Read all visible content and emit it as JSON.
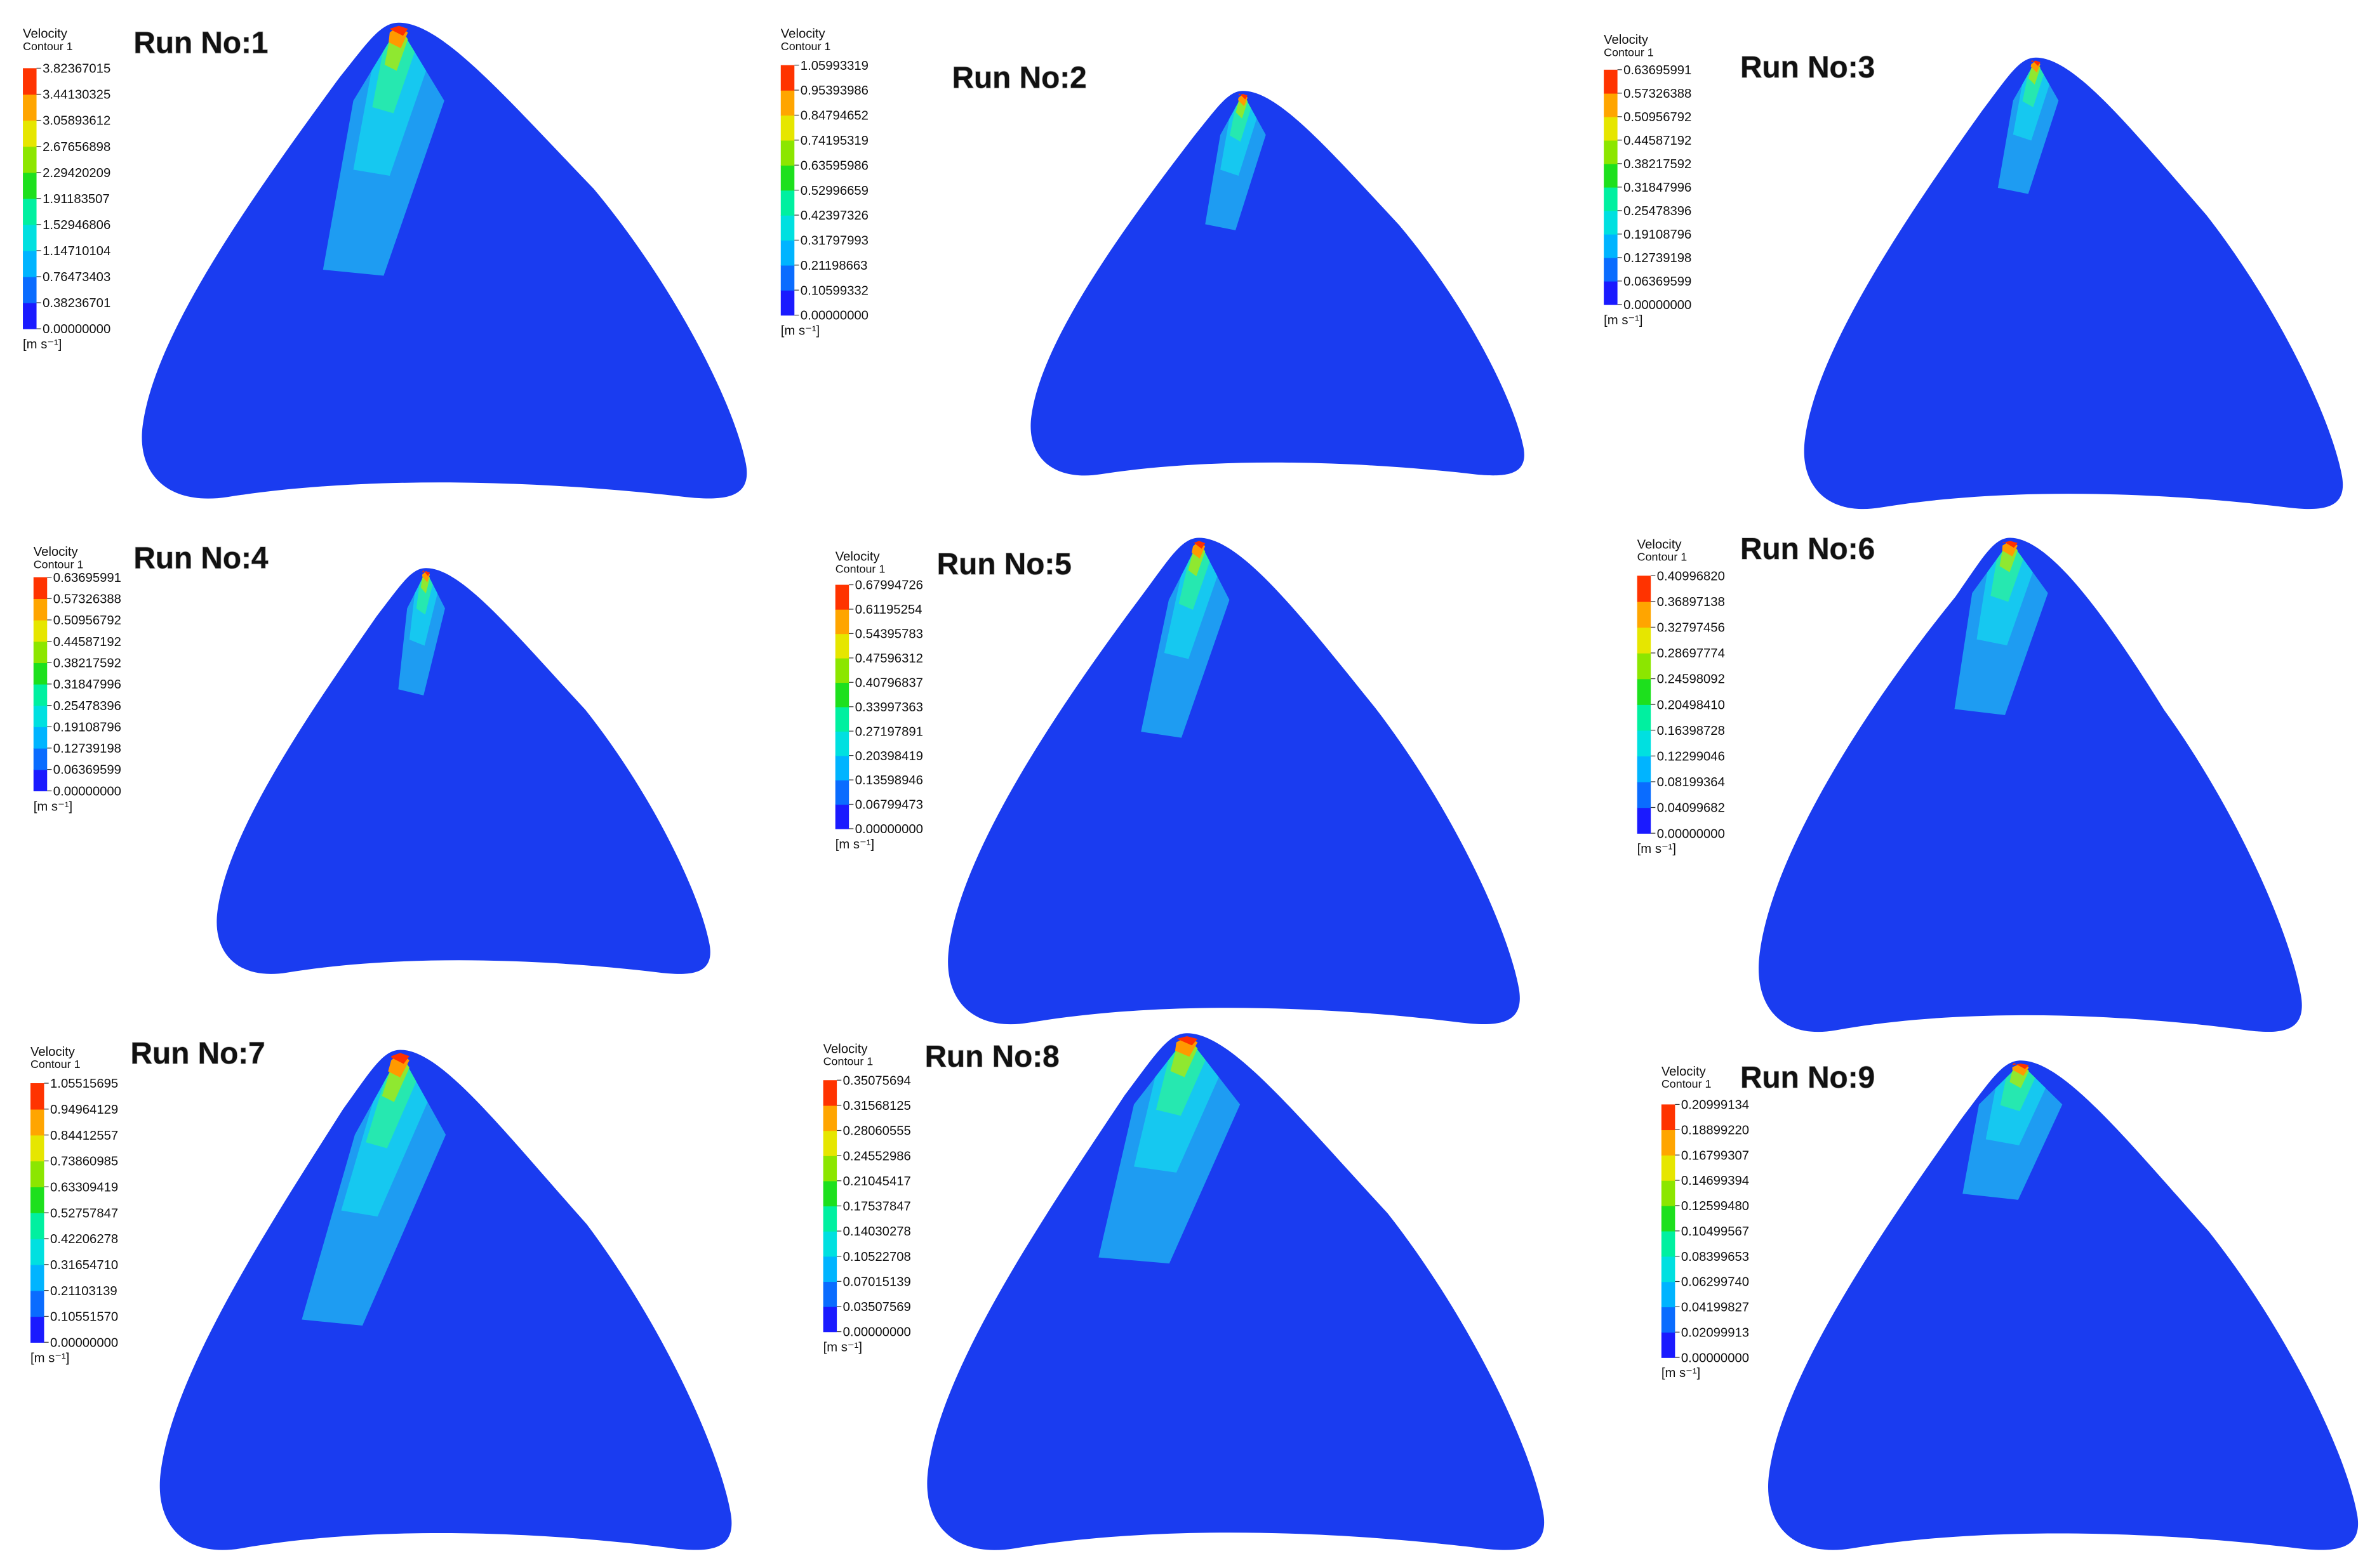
{
  "panels": [
    {
      "title": "Run No:1",
      "legend": {
        "title": "Velocity",
        "subtitle": "Contour 1",
        "labels": [
          "3.82367015",
          "3.44130325",
          "3.05893612",
          "2.67656898",
          "2.29420209",
          "1.91183507",
          "1.52946806",
          "1.14710104",
          "0.76473403",
          "0.38236701",
          "0.00000000"
        ],
        "unit": "[m s⁻¹]"
      }
    },
    {
      "title": "Run No:2",
      "legend": {
        "title": "Velocity",
        "subtitle": "Contour 1",
        "labels": [
          "1.05993319",
          "0.95393986",
          "0.84794652",
          "0.74195319",
          "0.63595986",
          "0.52996659",
          "0.42397326",
          "0.31797993",
          "0.21198663",
          "0.10599332",
          "0.00000000"
        ],
        "unit": "[m s⁻¹]"
      }
    },
    {
      "title": "Run No:3",
      "legend": {
        "title": "Velocity",
        "subtitle": "Contour 1",
        "labels": [
          "0.63695991",
          "0.57326388",
          "0.50956792",
          "0.44587192",
          "0.38217592",
          "0.31847996",
          "0.25478396",
          "0.19108796",
          "0.12739198",
          "0.06369599",
          "0.00000000"
        ],
        "unit": "[m s⁻¹]"
      }
    },
    {
      "title": "Run No:4",
      "legend": {
        "title": "Velocity",
        "subtitle": "Contour 1",
        "labels": [
          "0.63695991",
          "0.57326388",
          "0.50956792",
          "0.44587192",
          "0.38217592",
          "0.31847996",
          "0.25478396",
          "0.19108796",
          "0.12739198",
          "0.06369599",
          "0.00000000"
        ],
        "unit": "[m s⁻¹]"
      }
    },
    {
      "title": "Run No:5",
      "legend": {
        "title": "Velocity",
        "subtitle": "Contour 1",
        "labels": [
          "0.67994726",
          "0.61195254",
          "0.54395783",
          "0.47596312",
          "0.40796837",
          "0.33997363",
          "0.27197891",
          "0.20398419",
          "0.13598946",
          "0.06799473",
          "0.00000000"
        ],
        "unit": "[m s⁻¹]"
      }
    },
    {
      "title": "Run No:6",
      "legend": {
        "title": "Velocity",
        "subtitle": "Contour 1",
        "labels": [
          "0.40996820",
          "0.36897138",
          "0.32797456",
          "0.28697774",
          "0.24598092",
          "0.20498410",
          "0.16398728",
          "0.12299046",
          "0.08199364",
          "0.04099682",
          "0.00000000"
        ],
        "unit": "[m s⁻¹]"
      }
    },
    {
      "title": "Run No:7",
      "legend": {
        "title": "Velocity",
        "subtitle": "Contour 1",
        "labels": [
          "1.05515695",
          "0.94964129",
          "0.84412557",
          "0.73860985",
          "0.63309419",
          "0.52757847",
          "0.42206278",
          "0.31654710",
          "0.21103139",
          "0.10551570",
          "0.00000000"
        ],
        "unit": "[m s⁻¹]"
      }
    },
    {
      "title": "Run No:8",
      "legend": {
        "title": "Velocity",
        "subtitle": "Contour 1",
        "labels": [
          "0.35075694",
          "0.31568125",
          "0.28060555",
          "0.24552986",
          "0.21045417",
          "0.17537847",
          "0.14030278",
          "0.10522708",
          "0.07015139",
          "0.03507569",
          "0.00000000"
        ],
        "unit": "[m s⁻¹]"
      }
    },
    {
      "title": "Run No:9",
      "legend": {
        "title": "Velocity",
        "subtitle": "Contour 1",
        "labels": [
          "0.20999134",
          "0.18899220",
          "0.16799307",
          "0.14699394",
          "0.12599480",
          "0.10499567",
          "0.08399653",
          "0.06299740",
          "0.04199827",
          "0.02099913",
          "0.00000000"
        ],
        "unit": "[m s⁻¹]"
      }
    }
  ]
}
